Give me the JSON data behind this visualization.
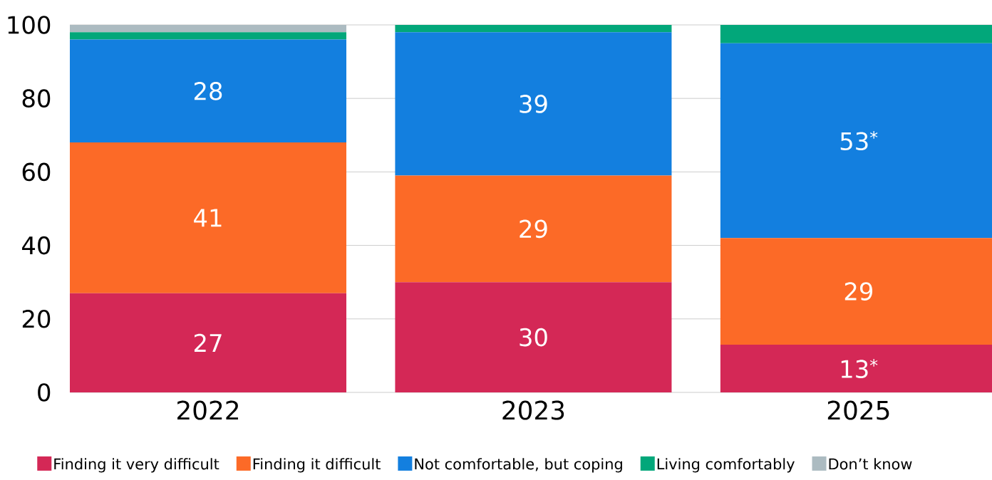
{
  "chart_data": {
    "type": "bar",
    "stacked": true,
    "categories": [
      "2022",
      "2023",
      "2025"
    ],
    "series": [
      {
        "name": "Finding it very difficult",
        "color": "#d42856",
        "values": [
          27,
          30,
          13
        ],
        "value_labels": [
          "27",
          "30",
          "13$^{*}$"
        ]
      },
      {
        "name": "Finding it difficult",
        "color": "#fc6a27",
        "values": [
          41,
          29,
          29
        ],
        "value_labels": [
          "41",
          "29",
          "29"
        ]
      },
      {
        "name": "Not comfortable, but coping",
        "color": "#137fdf",
        "values": [
          28,
          39,
          53
        ],
        "value_labels": [
          "28",
          "39",
          "53$^{*}$"
        ]
      },
      {
        "name": "Living comfortably",
        "color": "#02a77a",
        "values": [
          2,
          2,
          5
        ]
      },
      {
        "name": "Don’t know",
        "color": "#acbbc1",
        "values": [
          2,
          null,
          null
        ]
      }
    ],
    "ylim": [
      0,
      100
    ],
    "yticks": [
      0,
      20,
      40,
      60,
      80,
      100
    ],
    "grid": "y",
    "legend": "bottom"
  }
}
